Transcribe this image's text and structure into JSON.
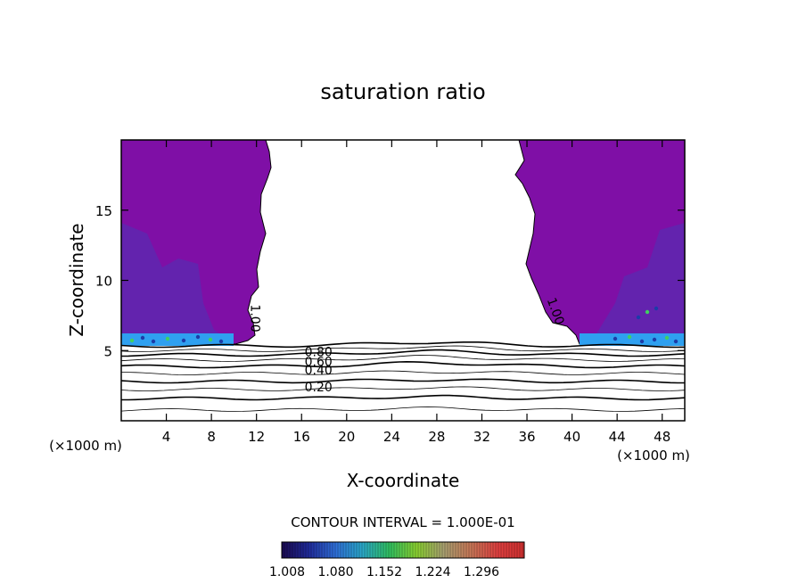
{
  "chart_data": {
    "type": "contour",
    "title": "saturation ratio",
    "xlabel": "X-coordinate",
    "ylabel": "Z-coordinate",
    "x_unit_left": "(×1000 m)",
    "x_unit_right": "(×1000 m)",
    "xlim": [
      0,
      50
    ],
    "ylim": [
      0,
      20
    ],
    "x_ticks": [
      4,
      8,
      12,
      16,
      20,
      24,
      28,
      32,
      36,
      40,
      44,
      48
    ],
    "x_tick_labels": [
      "4",
      "8",
      "12",
      "16",
      "20",
      "24",
      "28",
      "32",
      "36",
      "40",
      "44",
      "48"
    ],
    "y_ticks": [
      5,
      10,
      15
    ],
    "y_tick_labels": [
      "5",
      "10",
      "15"
    ],
    "contour_labels": [
      {
        "text": "1.00",
        "x": 11.5,
        "z": 7.3,
        "angle": 90
      },
      {
        "text": "1.00",
        "x": 38.2,
        "z": 7.7,
        "angle": 70
      },
      {
        "text": "0.80",
        "x": 17.5,
        "z": 4.6,
        "angle": 0
      },
      {
        "text": "0.60",
        "x": 17.5,
        "z": 3.9,
        "angle": 0
      },
      {
        "text": "0.40",
        "x": 17.5,
        "z": 3.3,
        "angle": 0
      },
      {
        "text": "0.20",
        "x": 17.5,
        "z": 2.1,
        "angle": 0
      }
    ],
    "contour_interval_label": "CONTOUR INTERVAL = 1.000E-01",
    "colorbar": {
      "labels": [
        "1.008",
        "1.080",
        "1.152",
        "1.224",
        "1.296"
      ],
      "colors": [
        "#1a0a50",
        "#1f2a9a",
        "#2f6fd8",
        "#2aa8c8",
        "#30c060",
        "#8ad030",
        "#a8a070",
        "#c87858",
        "#e04040",
        "#d03030"
      ]
    },
    "colors": {
      "supersaturated_fill": "#7f0fa6",
      "edge_fill": "#5a2bb0",
      "band_fill": "#2fa0f0",
      "axis": "#000000"
    }
  }
}
